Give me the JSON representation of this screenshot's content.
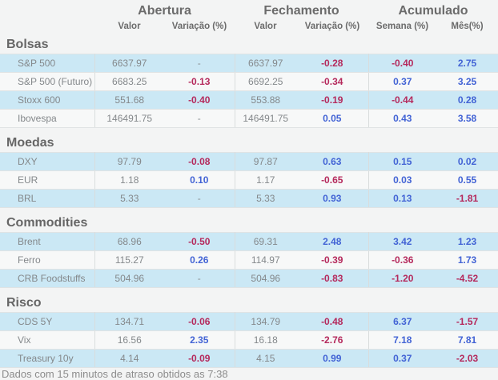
{
  "header": {
    "groups": [
      {
        "label": "Abertura"
      },
      {
        "label": "Fechamento"
      },
      {
        "label": "Acumulado"
      }
    ],
    "subcolumns": [
      "Valor",
      "Variação (%)",
      "Valor",
      "Variação (%)",
      "Semana (%)",
      "Mês(%)"
    ]
  },
  "sections": [
    {
      "title": "Bolsas",
      "rows": [
        {
          "label": "S&P 500",
          "cells": [
            "6637.97",
            "-",
            "6637.97",
            "-0.28",
            "-0.40",
            "2.75"
          ]
        },
        {
          "label": "S&P 500 (Futuro)",
          "cells": [
            "6683.25",
            "-0.13",
            "6692.25",
            "-0.34",
            "0.37",
            "3.25"
          ]
        },
        {
          "label": "Stoxx 600",
          "cells": [
            "551.68",
            "-0.40",
            "553.88",
            "-0.19",
            "-0.44",
            "0.28"
          ]
        },
        {
          "label": "Ibovespa",
          "cells": [
            "146491.75",
            "-",
            "146491.75",
            "0.05",
            "0.43",
            "3.58"
          ]
        }
      ]
    },
    {
      "title": "Moedas",
      "rows": [
        {
          "label": "DXY",
          "cells": [
            "97.79",
            "-0.08",
            "97.87",
            "0.63",
            "0.15",
            "0.02"
          ]
        },
        {
          "label": "EUR",
          "cells": [
            "1.18",
            "0.10",
            "1.17",
            "-0.65",
            "0.03",
            "0.55"
          ]
        },
        {
          "label": "BRL",
          "cells": [
            "5.33",
            "-",
            "5.33",
            "0.93",
            "0.13",
            "-1.81"
          ]
        }
      ]
    },
    {
      "title": "Commodities",
      "rows": [
        {
          "label": "Brent",
          "cells": [
            "68.96",
            "-0.50",
            "69.31",
            "2.48",
            "3.42",
            "1.23"
          ]
        },
        {
          "label": "Ferro",
          "cells": [
            "115.27",
            "0.26",
            "114.97",
            "-0.39",
            "-0.36",
            "1.73"
          ]
        },
        {
          "label": "CRB Foodstuffs",
          "cells": [
            "504.96",
            "-",
            "504.96",
            "-0.83",
            "-1.20",
            "-4.52"
          ]
        }
      ]
    },
    {
      "title": "Risco",
      "rows": [
        {
          "label": "CDS 5Y",
          "cells": [
            "134.71",
            "-0.06",
            "134.79",
            "-0.48",
            "6.37",
            "-1.57"
          ]
        },
        {
          "label": "Vix",
          "cells": [
            "16.56",
            "2.35",
            "16.18",
            "-2.76",
            "7.18",
            "7.81"
          ]
        },
        {
          "label": "Treasury 10y",
          "cells": [
            "4.14",
            "-0.09",
            "4.15",
            "0.99",
            "0.37",
            "-2.03"
          ]
        }
      ]
    }
  ],
  "footer": {
    "note": "Dados com 15 minutos de atraso obtidos as 7:38"
  },
  "colors": {
    "positive": "#4263d5",
    "negative": "#b5295c",
    "row_blue": "#cbe8f5",
    "row_light": "#f7f8f8"
  }
}
